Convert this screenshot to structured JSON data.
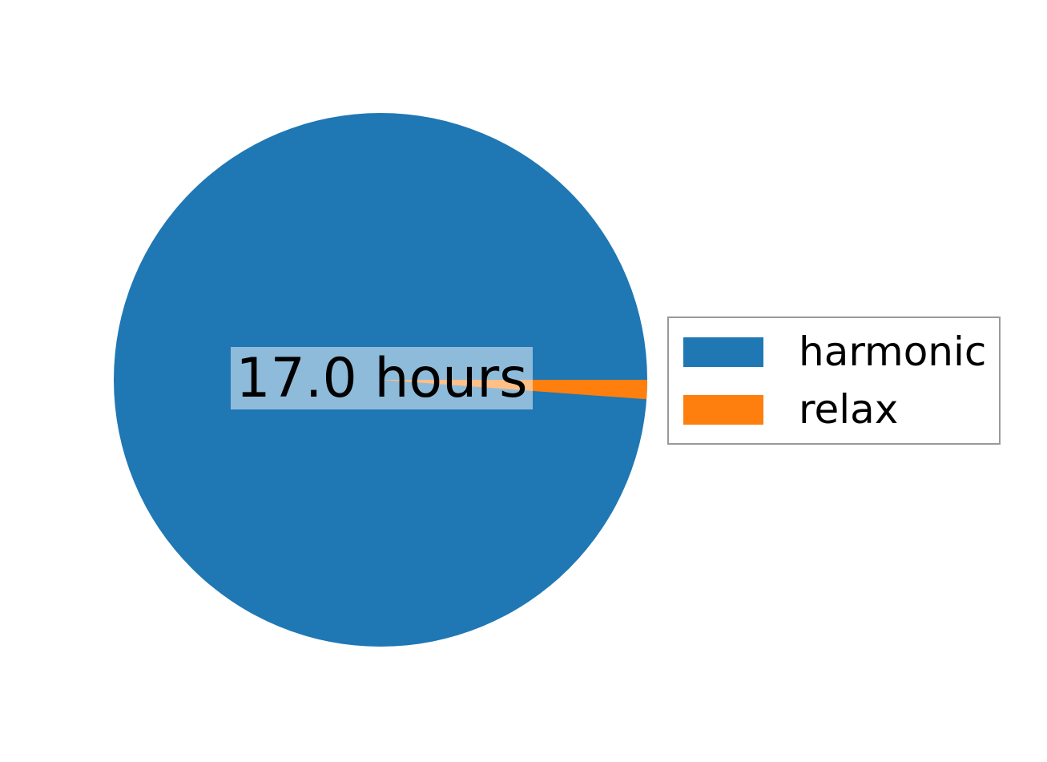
{
  "chart_data": {
    "type": "pie",
    "labels": [
      "harmonic",
      "relax"
    ],
    "values": [
      17.0,
      0.2
    ],
    "unit": "hours",
    "colors": [
      "#1f77b4",
      "#ff7f0e"
    ],
    "startangle": 0,
    "counterclock": true,
    "center_label": "17.0 hours",
    "center_label_bg": "rgba(255,255,255,0.5)",
    "title": "",
    "legend": {
      "entries": [
        "harmonic",
        "relax"
      ],
      "position": "center right",
      "border_color": "#999999",
      "background": "#ffffff"
    }
  }
}
